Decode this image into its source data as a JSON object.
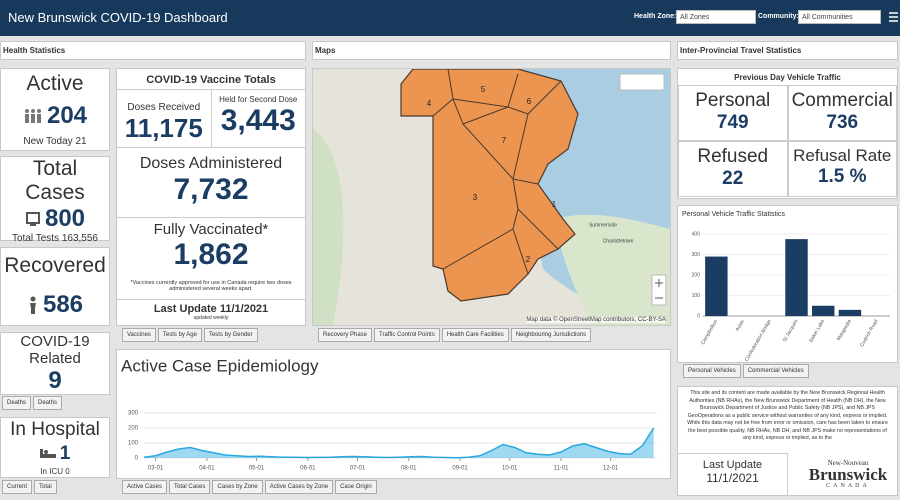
{
  "header": {
    "title": "New Brunswick COVID-19 Dashboard",
    "health_zone_label": "Health Zone:",
    "health_zone_value": "All Zones",
    "community_label": "Community:",
    "community_value": "All Communities"
  },
  "sections": {
    "health": "Health Statistics",
    "maps": "Maps",
    "travel": "Inter-Provincial Travel Statistics"
  },
  "stats": [
    {
      "label": "Active",
      "value": "204",
      "note": "New Today 21"
    },
    {
      "label": "Total Cases",
      "value": "800",
      "note": "Total Tests 163,556"
    },
    {
      "label": "Recovered",
      "value": "586"
    },
    {
      "label": "COVID-19 Related",
      "value": "9",
      "tabs": [
        "Deaths",
        "Deaths"
      ]
    },
    {
      "label": "In Hospital",
      "value": "1",
      "note": "In ICU 0",
      "tabs": [
        "Current",
        "Total"
      ]
    }
  ],
  "vaccines": {
    "title": "COVID-19 Vaccine Totals",
    "items": [
      {
        "label": "Doses Received",
        "value": "11,175"
      },
      {
        "label": "Held for Second Dose",
        "value": "3,443"
      },
      {
        "label": "Doses Administered",
        "value": "7,732"
      },
      {
        "label": "Fully Vaccinated*",
        "value": "1,862"
      }
    ],
    "footnote": "*Vaccines currently approved for use in Canada require two doses administered several weeks apart.",
    "last_update": "Last Update 11/1/2021",
    "update_note": "updated weekly",
    "tabs": [
      "Vaccines",
      "Tests by Age",
      "Tests by Gender"
    ]
  },
  "map": {
    "zones": [
      "1",
      "2",
      "3",
      "4",
      "5",
      "6",
      "7"
    ],
    "places": [
      "Summerside",
      "Charlottetown"
    ],
    "attribution": "Map data © OpenStreetMap contributors, CC-BY-SA",
    "tabs": [
      "Recovery Phase",
      "Traffic Control Points",
      "Health Care Facilities",
      "Neighbouring Jurisdictions"
    ]
  },
  "travel": {
    "subtitle": "Previous Day Vehicle Traffic",
    "items": [
      {
        "label": "Personal",
        "value": "749"
      },
      {
        "label": "Commercial",
        "value": "736"
      },
      {
        "label": "Refused",
        "value": "22"
      },
      {
        "label": "Refusal Rate",
        "value": "1.5 %"
      }
    ]
  },
  "chart_data": [
    {
      "type": "area",
      "title": "Active Case Epidemiology",
      "x": [
        0,
        7,
        14,
        21,
        28,
        35,
        42,
        49,
        56,
        63,
        70,
        77,
        84,
        91,
        98,
        105,
        112,
        119,
        126,
        133,
        140,
        147,
        154,
        161,
        168,
        175,
        182,
        189,
        196,
        203,
        210,
        217,
        224,
        231,
        238,
        245,
        252,
        259,
        266,
        273,
        280,
        287,
        294,
        301,
        308
      ],
      "values": [
        5,
        15,
        40,
        60,
        70,
        50,
        35,
        20,
        15,
        10,
        12,
        8,
        5,
        5,
        3,
        4,
        5,
        8,
        10,
        8,
        5,
        3,
        5,
        8,
        10,
        5,
        3,
        2,
        5,
        15,
        50,
        90,
        70,
        35,
        25,
        20,
        40,
        80,
        95,
        70,
        45,
        30,
        25,
        80,
        200
      ],
      "color": "#29a8e0",
      "xlim": [
        0,
        310
      ],
      "xticks": [
        {
          "value": 7,
          "label": "03-01"
        },
        {
          "value": 38,
          "label": "04-01"
        },
        {
          "value": 68,
          "label": "05-01"
        },
        {
          "value": 99,
          "label": "06-01"
        },
        {
          "value": 129,
          "label": "07-01"
        },
        {
          "value": 160,
          "label": "08-01"
        },
        {
          "value": 191,
          "label": "09-01"
        },
        {
          "value": 221,
          "label": "10-01"
        },
        {
          "value": 252,
          "label": "11-01"
        },
        {
          "value": 282,
          "label": "12-01"
        }
      ],
      "ylim": [
        0,
        300
      ],
      "yticks": [
        0,
        100,
        200,
        300
      ],
      "grid": true,
      "tabs": [
        "Active Cases",
        "Total Cases",
        "Cases by Zone",
        "Active Cases by Zone",
        "Case Origin"
      ]
    },
    {
      "type": "bar",
      "title": "Personal Vehicle Traffic Statistics",
      "categories": [
        "Campbellton",
        "Aulac",
        "Confederation Bridge",
        "St Jacques",
        "Baker Lake",
        "Matapedia",
        "Cudrich Road"
      ],
      "values": [
        290,
        0,
        0,
        375,
        50,
        30,
        0
      ],
      "color": "#1b3d63",
      "ylim": [
        0,
        400
      ],
      "yticks": [
        0,
        100,
        200,
        300,
        400
      ],
      "grid": true,
      "tabs": [
        "Personal Vehicles",
        "Commercial Vehicles"
      ]
    }
  ],
  "disclaimer": "This site and its content are made available by the New Brunswick Regional Health Authorities (NB RHAs), the New Brunswick Department of Health (NB DH), the New Brunswick Department of Justice and Public Safety (NB JPS), and NB JPS GeoOperations as a public service without warranties of any kind, express or implied. While this data may not be free from error or omission, care has been taken to ensure the best possible quality. NB RHAs, NB DH, and NB JPS make no representations of any kind, express or implied, as to the",
  "last_update": {
    "label": "Last Update",
    "date": "11/1/2021"
  },
  "logo": {
    "top": "New-Nouveau",
    "name": "Brunswick",
    "country": "CANADA"
  }
}
